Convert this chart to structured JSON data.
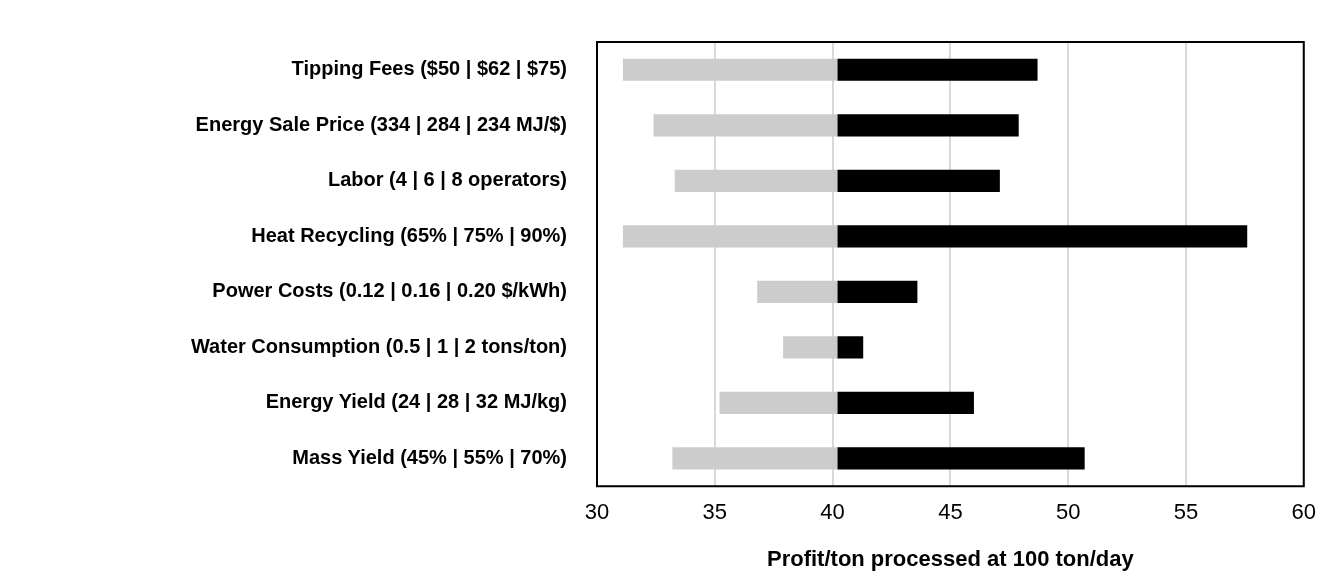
{
  "chart_data": {
    "type": "bar",
    "orientation": "horizontal",
    "xlabel": "Profit/ton processed at 100 ton/day",
    "categories": [
      "Tipping Fees ($50 | $62 | $75)",
      "Energy Sale Price (334 | 284 | 234 MJ/$)",
      "Labor (4 | 6 | 8 operators)",
      "Heat Recycling (65% | 75% | 90%)",
      "Power Costs (0.12 | 0.16 | 0.20 $/kWh)",
      "Water Consumption (0.5 | 1 | 2 tons/ton)",
      "Energy Yield (24 | 28 | 32 MJ/kg)",
      "Mass Yield (45% | 55% | 70%)"
    ],
    "series": [
      {
        "color": "#cccccc",
        "base": [
          31.1,
          32.4,
          33.3,
          31.1,
          36.8,
          37.9,
          35.2,
          33.2
        ],
        "values": [
          9.1,
          7.8,
          6.9,
          9.1,
          3.4,
          2.3,
          5.0,
          7.0
        ]
      },
      {
        "color": "#000000",
        "base": [
          40.2,
          40.2,
          40.2,
          40.2,
          40.2,
          40.2,
          40.2,
          40.2
        ],
        "values": [
          8.5,
          7.7,
          6.9,
          17.4,
          3.4,
          1.1,
          5.8,
          10.5
        ]
      }
    ],
    "xlim": [
      30,
      60
    ],
    "xticks": [
      30,
      35,
      40,
      45,
      50,
      55,
      60
    ],
    "grid": "x",
    "legend": false
  }
}
